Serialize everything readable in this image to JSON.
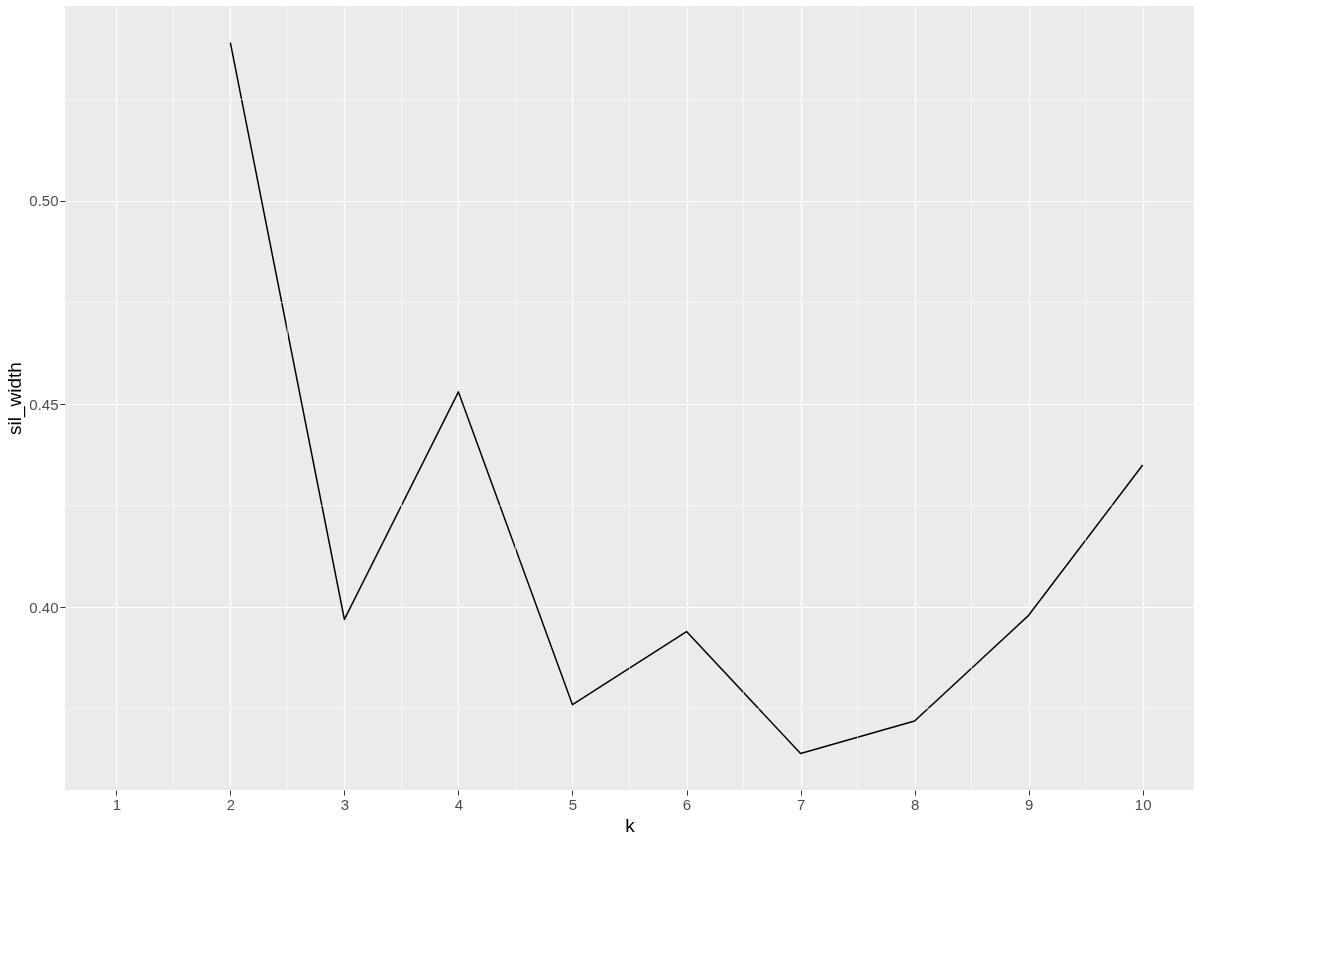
{
  "chart_data": {
    "type": "line",
    "xlabel": "k",
    "ylabel": "sil_width",
    "x": [
      2,
      3,
      4,
      5,
      6,
      7,
      8,
      9,
      10
    ],
    "series": [
      {
        "color": "#000000",
        "values": [
          0.539,
          0.397,
          0.453,
          0.376,
          0.394,
          0.364,
          0.372,
          0.398,
          0.435
        ]
      }
    ],
    "xlim": [
      0.55,
      10.45
    ],
    "ylim": [
      0.355,
      0.548
    ],
    "xticks": [
      1,
      2,
      3,
      4,
      5,
      6,
      7,
      8,
      9,
      10
    ],
    "yticks": [
      {
        "value": 0.4,
        "label": "0.40"
      },
      {
        "value": 0.45,
        "label": "0.45"
      },
      {
        "value": 0.5,
        "label": "0.50"
      }
    ],
    "grid": true,
    "marker": "none",
    "line_style": "solid"
  }
}
